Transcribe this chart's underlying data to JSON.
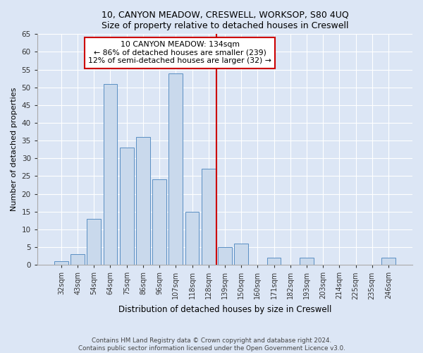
{
  "title_line1": "10, CANYON MEADOW, CRESWELL, WORKSOP, S80 4UQ",
  "title_line2": "Size of property relative to detached houses in Creswell",
  "xlabel": "Distribution of detached houses by size in Creswell",
  "ylabel": "Number of detached properties",
  "categories": [
    "32sqm",
    "43sqm",
    "54sqm",
    "64sqm",
    "75sqm",
    "86sqm",
    "96sqm",
    "107sqm",
    "118sqm",
    "128sqm",
    "139sqm",
    "150sqm",
    "160sqm",
    "171sqm",
    "182sqm",
    "193sqm",
    "203sqm",
    "214sqm",
    "225sqm",
    "235sqm",
    "246sqm"
  ],
  "values": [
    1,
    3,
    13,
    51,
    33,
    36,
    24,
    54,
    15,
    27,
    5,
    6,
    0,
    2,
    0,
    2,
    0,
    0,
    0,
    0,
    2
  ],
  "bar_color": "#c9d9ec",
  "bar_edge_color": "#5a8fc3",
  "vline_x": 9.5,
  "vline_color": "#cc0000",
  "box_edge_color": "#cc0000",
  "highlight_label": "10 CANYON MEADOW: 134sqm",
  "highlight_sub1": "← 86% of detached houses are smaller (239)",
  "highlight_sub2": "12% of semi-detached houses are larger (32) →",
  "ylim": [
    0,
    65
  ],
  "yticks": [
    0,
    5,
    10,
    15,
    20,
    25,
    30,
    35,
    40,
    45,
    50,
    55,
    60,
    65
  ],
  "footer_line1": "Contains HM Land Registry data © Crown copyright and database right 2024.",
  "footer_line2": "Contains public sector information licensed under the Open Government Licence v3.0.",
  "bg_color": "#dce6f5",
  "plot_bg_color": "#dce6f5",
  "title_fontsize": 9,
  "xlabel_fontsize": 8.5,
  "ylabel_fontsize": 8,
  "xtick_fontsize": 7,
  "ytick_fontsize": 7.5
}
